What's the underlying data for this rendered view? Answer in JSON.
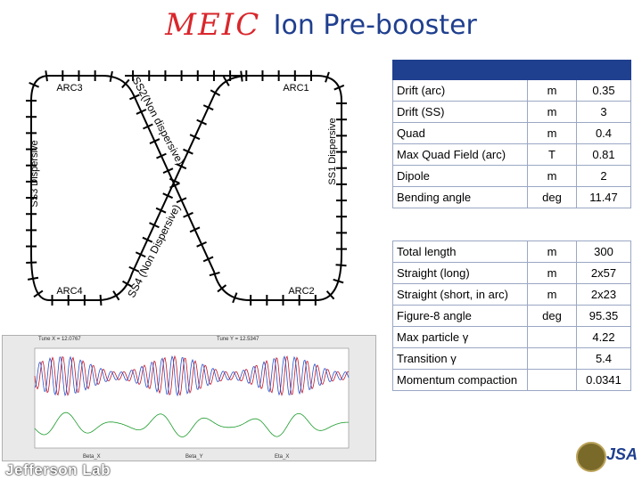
{
  "title": {
    "logo": "MEIC",
    "text": "Ion Pre-booster"
  },
  "labels": {
    "arc1": "ARC1",
    "arc2": "ARC2",
    "arc3": "ARC3",
    "arc4": "ARC4",
    "ss1": "SS1 Dispersive",
    "ss2": "SS2(Non dispersive)",
    "ss3": "SS3 Dispersive",
    "ss4": "SS4 (Non Dispersive)"
  },
  "table1": [
    {
      "name": "Drift (arc)",
      "unit": "m",
      "value": "0.35"
    },
    {
      "name": "Drift (SS)",
      "unit": "m",
      "value": "3"
    },
    {
      "name": "Quad",
      "unit": "m",
      "value": "0.4"
    },
    {
      "name": "Max Quad Field (arc)",
      "unit": "T",
      "value": "0.81"
    },
    {
      "name": "Dipole",
      "unit": "m",
      "value": "2"
    },
    {
      "name": "Bending angle",
      "unit": "deg",
      "value": "11.47"
    }
  ],
  "table2": [
    {
      "name": "Total length",
      "unit": "m",
      "value": "300"
    },
    {
      "name": "Straight (long)",
      "unit": "m",
      "value": "2x57"
    },
    {
      "name": "Straight (short, in arc)",
      "unit": "m",
      "value": "2x23"
    },
    {
      "name": "Figure-8 angle",
      "unit": "deg",
      "value": "95.35"
    },
    {
      "name": "Max particle γ",
      "unit": "",
      "value": "4.22"
    },
    {
      "name": "Transition γ",
      "unit": "",
      "value": "5.4"
    },
    {
      "name": "Momentum compaction",
      "unit": "",
      "value": "0.0341"
    }
  ],
  "plot": {
    "tune_x": "Tune X = 12.0767",
    "tune_y": "Tune Y = 12.5347",
    "legend": [
      "Beta_X",
      "Beta_Y",
      "Eta_X"
    ],
    "colors": {
      "beta_x": "#c0182a",
      "beta_y": "#2a50c8",
      "eta_x": "#1a9a2a"
    }
  },
  "footer": {
    "lab": "Jefferson Lab",
    "org": "JSA"
  }
}
